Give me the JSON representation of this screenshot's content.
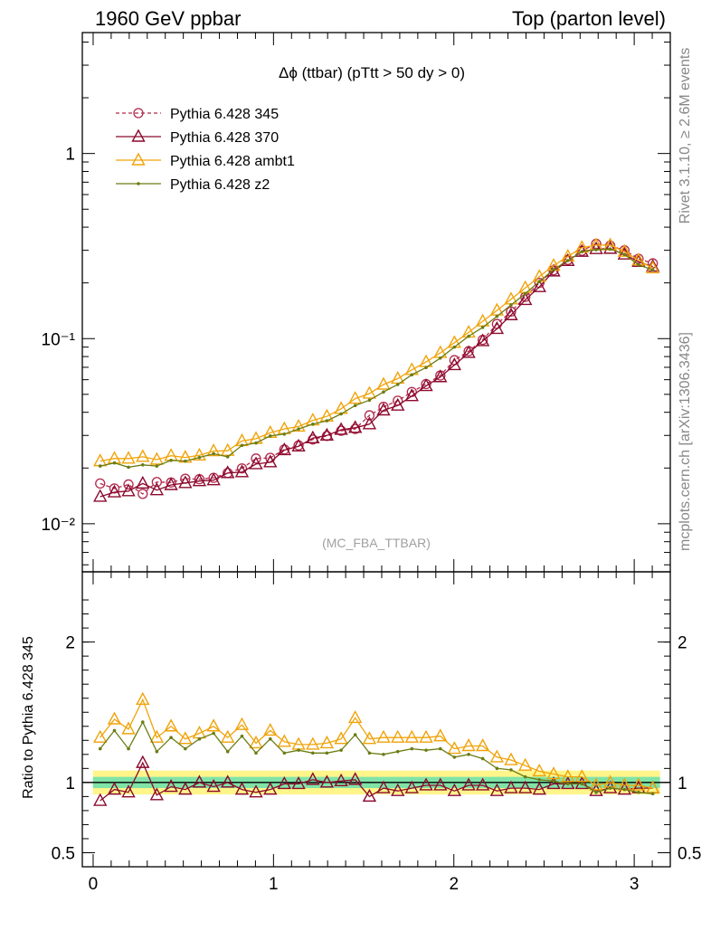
{
  "header": {
    "left": "1960 GeV ppbar",
    "right": "Top (parton level)"
  },
  "side_labels": {
    "rivet": "Rivet 3.1.10, ≥ 2.6M events",
    "site": "mcplots.cern.ch [arXiv:1306.3436]"
  },
  "chart_data": [
    {
      "type": "line",
      "title": "Δϕ (ttbar) (pTtt > 50 dy > 0)",
      "analysis_tag": "(MC_FBA_TTBAR)",
      "yscale": "log",
      "ylim": [
        0.0055,
        4.5
      ],
      "xlim": [
        -0.06,
        3.2
      ],
      "y_ticks": [
        {
          "value": 1,
          "label": "1"
        },
        {
          "value": 0.1,
          "label": "10⁻¹"
        },
        {
          "value": 0.01,
          "label": "10⁻²"
        }
      ],
      "legend_position": "top-left",
      "x": [
        0.039,
        0.118,
        0.196,
        0.275,
        0.353,
        0.432,
        0.511,
        0.589,
        0.668,
        0.746,
        0.825,
        0.903,
        0.982,
        1.06,
        1.139,
        1.218,
        1.296,
        1.375,
        1.453,
        1.532,
        1.61,
        1.689,
        1.767,
        1.846,
        1.925,
        2.003,
        2.082,
        2.16,
        2.239,
        2.317,
        2.396,
        2.474,
        2.553,
        2.632,
        2.71,
        2.789,
        2.867,
        2.946,
        3.024,
        3.103
      ],
      "series": [
        {
          "name": "Pythia 6.428 345",
          "color": "#b2294b",
          "marker": "circle-open",
          "dashed": true,
          "values": [
            0.0165,
            0.0155,
            0.0163,
            0.0145,
            0.0168,
            0.0167,
            0.0175,
            0.0174,
            0.0177,
            0.0188,
            0.0199,
            0.0225,
            0.0227,
            0.0252,
            0.0265,
            0.0285,
            0.0298,
            0.0318,
            0.0325,
            0.0385,
            0.0428,
            0.0462,
            0.0515,
            0.0568,
            0.0632,
            0.0765,
            0.0855,
            0.0985,
            0.12,
            0.14,
            0.168,
            0.2,
            0.234,
            0.266,
            0.298,
            0.325,
            0.318,
            0.3,
            0.27,
            0.255
          ]
        },
        {
          "name": "Pythia 6.428 370",
          "color": "#8b0a2e",
          "marker": "triangle-open",
          "dashed": false,
          "values": [
            0.014,
            0.0148,
            0.015,
            0.0165,
            0.0152,
            0.0162,
            0.0166,
            0.017,
            0.0172,
            0.0188,
            0.019,
            0.021,
            0.0215,
            0.025,
            0.0262,
            0.029,
            0.03,
            0.0322,
            0.033,
            0.0345,
            0.041,
            0.0435,
            0.049,
            0.0555,
            0.062,
            0.072,
            0.0838,
            0.097,
            0.113,
            0.134,
            0.162,
            0.19,
            0.231,
            0.263,
            0.295,
            0.305,
            0.306,
            0.285,
            0.26,
            0.245
          ]
        },
        {
          "name": "Pythia 6.428 ambt1",
          "color": "#f0a30a",
          "marker": "triangle-open",
          "dashed": false,
          "values": [
            0.0218,
            0.0225,
            0.0225,
            0.023,
            0.0222,
            0.0233,
            0.0228,
            0.0234,
            0.0247,
            0.0248,
            0.028,
            0.0288,
            0.031,
            0.0325,
            0.0335,
            0.0362,
            0.038,
            0.0418,
            0.0474,
            0.0505,
            0.0565,
            0.0608,
            0.0678,
            0.0748,
            0.0838,
            0.095,
            0.108,
            0.124,
            0.142,
            0.163,
            0.188,
            0.216,
            0.248,
            0.278,
            0.31,
            0.32,
            0.32,
            0.295,
            0.265,
            0.24
          ]
        },
        {
          "name": "Pythia 6.428 z2",
          "color": "#6b7d14",
          "marker": "dot",
          "dashed": false,
          "values": [
            0.0205,
            0.0213,
            0.0202,
            0.0208,
            0.0205,
            0.022,
            0.0218,
            0.0228,
            0.0239,
            0.023,
            0.0265,
            0.0273,
            0.0298,
            0.0305,
            0.0325,
            0.0345,
            0.036,
            0.0392,
            0.0435,
            0.0465,
            0.0515,
            0.0565,
            0.0638,
            0.0698,
            0.0785,
            0.09,
            0.103,
            0.115,
            0.132,
            0.152,
            0.175,
            0.203,
            0.236,
            0.264,
            0.295,
            0.302,
            0.305,
            0.285,
            0.25,
            0.235
          ]
        }
      ]
    },
    {
      "type": "line",
      "ylabel": "Ratio to Pythia 6.428 345",
      "ylim": [
        0.4,
        2.5
      ],
      "xlim": [
        -0.06,
        3.2
      ],
      "y_ticks": [
        {
          "value": 2,
          "label": "2"
        },
        {
          "value": 1,
          "label": "1"
        },
        {
          "value": 0.5,
          "label": "0.5"
        }
      ],
      "x_ticks": [
        {
          "value": 0,
          "label": "0"
        },
        {
          "value": 1,
          "label": "1"
        },
        {
          "value": 2,
          "label": "2"
        },
        {
          "value": 3,
          "label": "3"
        }
      ],
      "reference_band": {
        "inner": 0.04,
        "outer": 0.085,
        "inner_color": "#7fe3a7",
        "outer_color": "#fff58a"
      },
      "x": [
        0.039,
        0.118,
        0.196,
        0.275,
        0.353,
        0.432,
        0.511,
        0.589,
        0.668,
        0.746,
        0.825,
        0.903,
        0.982,
        1.06,
        1.139,
        1.218,
        1.296,
        1.375,
        1.453,
        1.532,
        1.61,
        1.689,
        1.767,
        1.846,
        1.925,
        2.003,
        2.082,
        2.16,
        2.239,
        2.317,
        2.396,
        2.474,
        2.553,
        2.632,
        2.71,
        2.789,
        2.867,
        2.946,
        3.024,
        3.103
      ],
      "series": [
        {
          "name": "Pythia 6.428 370",
          "color": "#8b0a2e",
          "marker": "triangle-open",
          "values": [
            0.87,
            0.95,
            0.93,
            1.14,
            0.91,
            0.97,
            0.95,
            1.0,
            0.97,
            1.0,
            0.95,
            0.93,
            0.95,
            0.99,
            0.99,
            1.02,
            1.0,
            1.01,
            1.02,
            0.9,
            0.96,
            0.94,
            0.96,
            0.98,
            0.98,
            0.94,
            0.98,
            0.98,
            0.94,
            0.96,
            0.96,
            0.95,
            0.99,
            0.99,
            0.99,
            0.94,
            0.96,
            0.95,
            0.96,
            0.96
          ]
        },
        {
          "name": "Pythia 6.428 ambt1",
          "color": "#f0a30a",
          "marker": "triangle-open",
          "values": [
            1.32,
            1.45,
            1.38,
            1.59,
            1.32,
            1.4,
            1.31,
            1.35,
            1.4,
            1.32,
            1.41,
            1.28,
            1.37,
            1.29,
            1.27,
            1.27,
            1.28,
            1.31,
            1.46,
            1.31,
            1.32,
            1.32,
            1.32,
            1.32,
            1.33,
            1.24,
            1.26,
            1.26,
            1.18,
            1.16,
            1.12,
            1.08,
            1.06,
            1.04,
            1.04,
            0.98,
            1.0,
            0.98,
            0.98,
            0.96
          ]
        },
        {
          "name": "Pythia 6.428 z2",
          "color": "#6b7d14",
          "marker": "dot",
          "values": [
            1.24,
            1.37,
            1.24,
            1.43,
            1.22,
            1.32,
            1.24,
            1.31,
            1.35,
            1.22,
            1.33,
            1.21,
            1.31,
            1.21,
            1.23,
            1.21,
            1.21,
            1.23,
            1.34,
            1.21,
            1.2,
            1.22,
            1.24,
            1.23,
            1.24,
            1.18,
            1.2,
            1.17,
            1.1,
            1.09,
            1.04,
            1.02,
            1.01,
            0.99,
            0.99,
            0.93,
            0.96,
            0.95,
            0.93,
            0.92
          ]
        }
      ]
    }
  ]
}
